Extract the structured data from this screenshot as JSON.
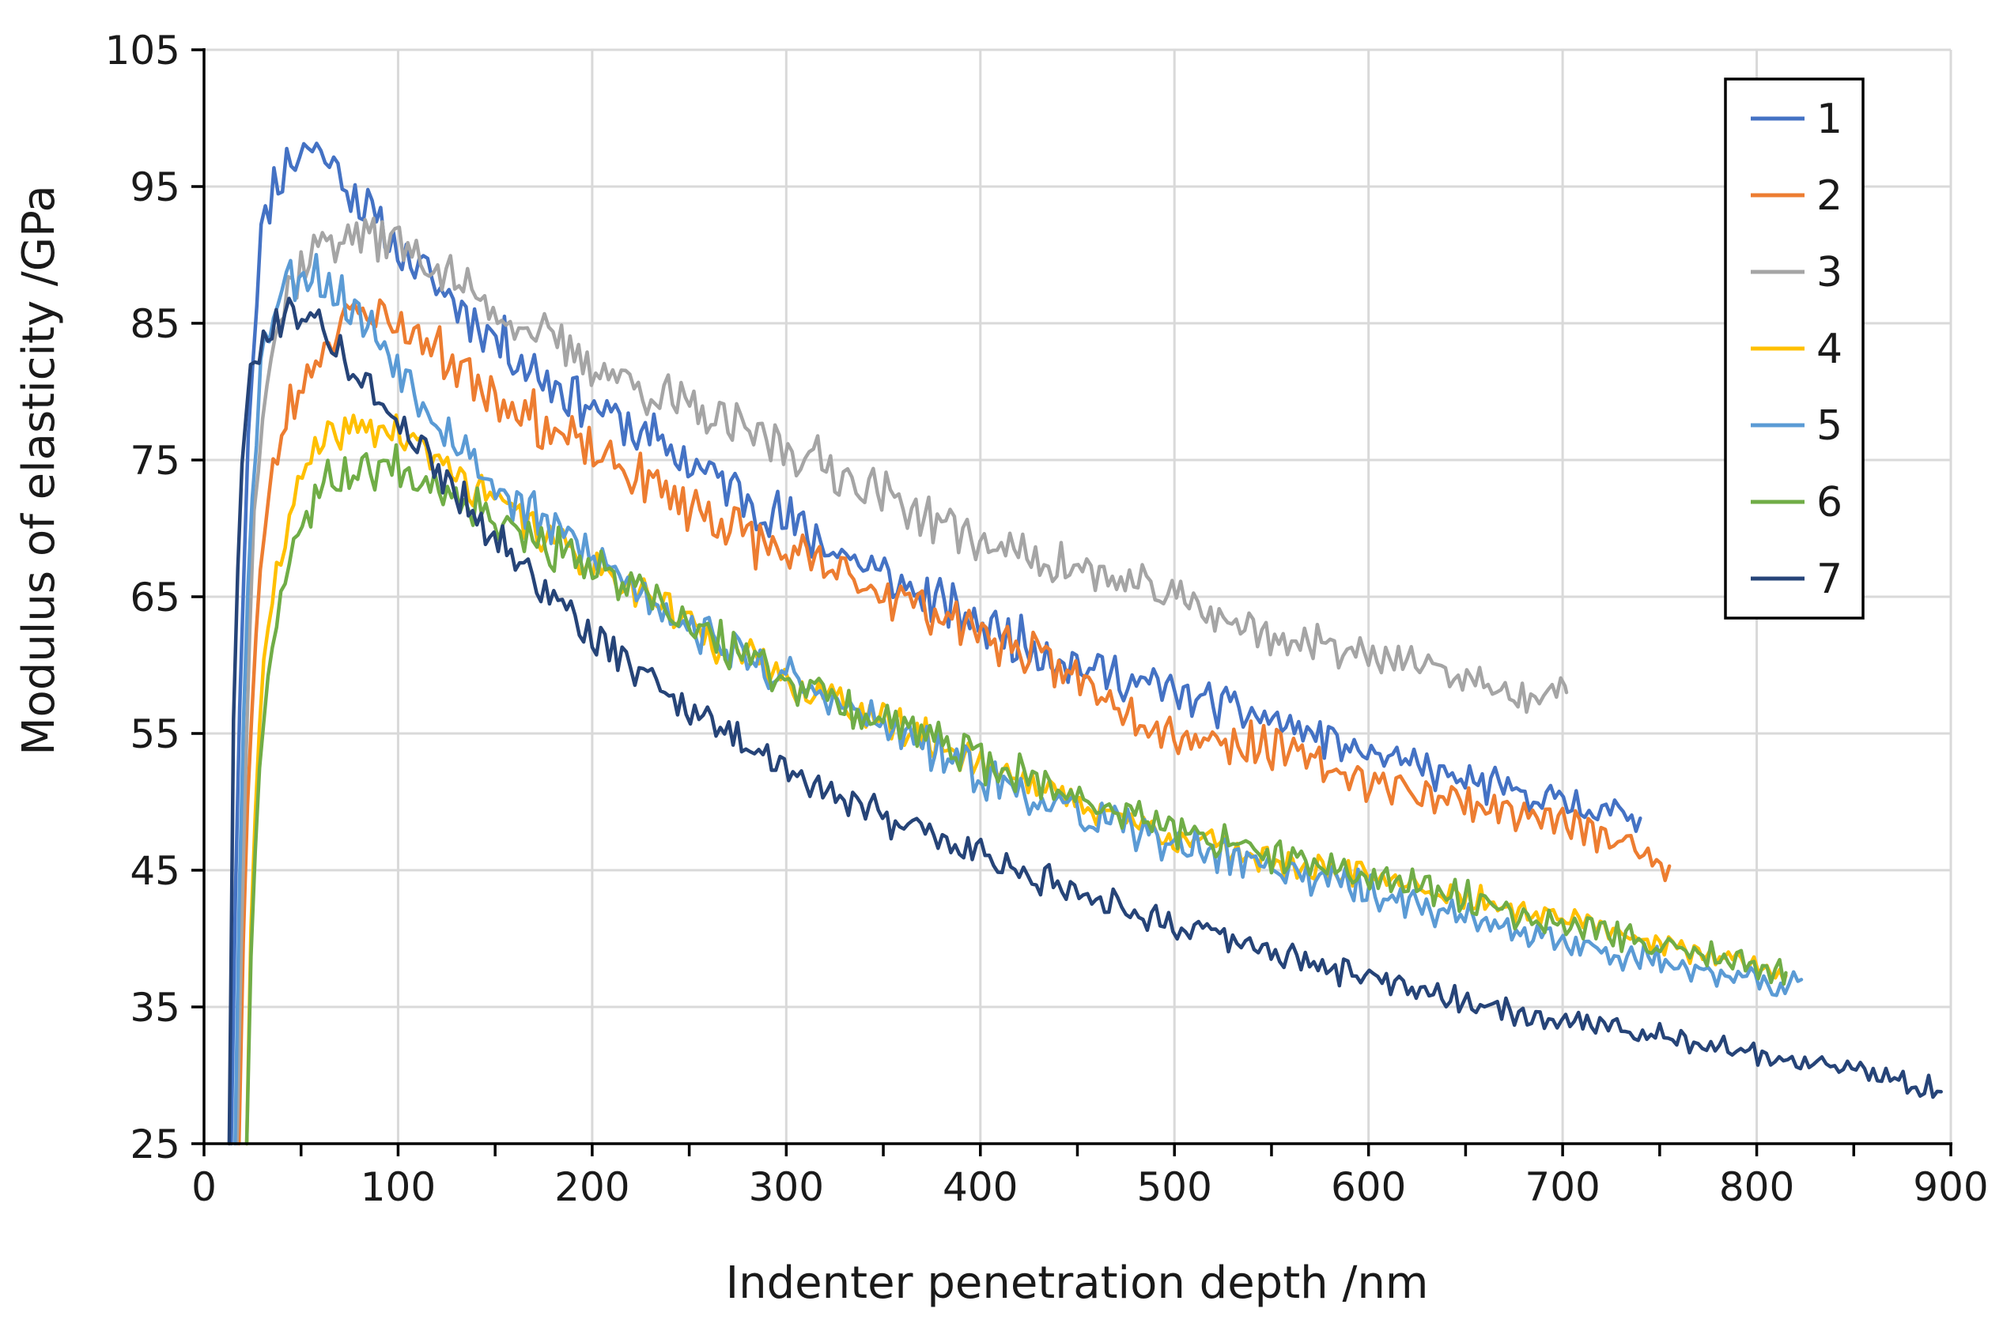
{
  "chart_data": {
    "type": "line",
    "title": "",
    "xlabel": "Indenter penetration depth /nm",
    "ylabel": "Modulus of elasticity /GPa",
    "xlim": [
      0,
      900
    ],
    "ylim": [
      25,
      105
    ],
    "xticks": [
      0,
      100,
      200,
      300,
      400,
      500,
      600,
      700,
      800,
      900
    ],
    "yticks": [
      25,
      35,
      45,
      55,
      65,
      75,
      85,
      95,
      105
    ],
    "x_minor_step": 50,
    "grid": true,
    "legend_position": "top-right",
    "series": [
      {
        "name": "1",
        "color": "#4472C4",
        "noise": 1.6,
        "seed": 11,
        "points": [
          [
            14,
            25
          ],
          [
            17,
            50
          ],
          [
            22,
            75
          ],
          [
            28,
            90
          ],
          [
            35,
            95
          ],
          [
            45,
            97
          ],
          [
            55,
            98
          ],
          [
            65,
            97
          ],
          [
            75,
            95
          ],
          [
            90,
            92
          ],
          [
            110,
            89
          ],
          [
            130,
            86.5
          ],
          [
            150,
            84
          ],
          [
            175,
            81
          ],
          [
            200,
            79
          ],
          [
            230,
            76.5
          ],
          [
            260,
            74
          ],
          [
            300,
            70.5
          ],
          [
            350,
            66.5
          ],
          [
            400,
            63
          ],
          [
            450,
            60
          ],
          [
            500,
            58
          ],
          [
            550,
            56
          ],
          [
            600,
            53.5
          ],
          [
            650,
            51.5
          ],
          [
            700,
            50
          ],
          [
            740,
            48.8
          ]
        ]
      },
      {
        "name": "2",
        "color": "#ED7D31",
        "noise": 1.6,
        "seed": 23,
        "points": [
          [
            18,
            25
          ],
          [
            21,
            45
          ],
          [
            26,
            62
          ],
          [
            33,
            72
          ],
          [
            42,
            78
          ],
          [
            55,
            82
          ],
          [
            70,
            85
          ],
          [
            85,
            86
          ],
          [
            100,
            85
          ],
          [
            120,
            83
          ],
          [
            150,
            80
          ],
          [
            180,
            77
          ],
          [
            220,
            74
          ],
          [
            260,
            71
          ],
          [
            300,
            68
          ],
          [
            350,
            65.5
          ],
          [
            400,
            62.5
          ],
          [
            450,
            59
          ],
          [
            500,
            55
          ],
          [
            550,
            54
          ],
          [
            600,
            51.5
          ],
          [
            650,
            50
          ],
          [
            700,
            48.5
          ],
          [
            740,
            46.5
          ],
          [
            755,
            45.3
          ]
        ]
      },
      {
        "name": "3",
        "color": "#A5A5A5",
        "noise": 1.5,
        "seed": 37,
        "points": [
          [
            17,
            25
          ],
          [
            20,
            45
          ],
          [
            25,
            70
          ],
          [
            32,
            82
          ],
          [
            45,
            88
          ],
          [
            60,
            91
          ],
          [
            80,
            91.5
          ],
          [
            100,
            91
          ],
          [
            125,
            88.5
          ],
          [
            150,
            86
          ],
          [
            175,
            84
          ],
          [
            200,
            82
          ],
          [
            230,
            80
          ],
          [
            260,
            78
          ],
          [
            300,
            76
          ],
          [
            350,
            72.5
          ],
          [
            400,
            69
          ],
          [
            450,
            67
          ],
          [
            500,
            65
          ],
          [
            550,
            62
          ],
          [
            600,
            61
          ],
          [
            650,
            59
          ],
          [
            680,
            57.5
          ],
          [
            702,
            58
          ]
        ]
      },
      {
        "name": "4",
        "color": "#FFC000",
        "noise": 1.2,
        "seed": 41,
        "points": [
          [
            22,
            25
          ],
          [
            24,
            40
          ],
          [
            28,
            55
          ],
          [
            35,
            65
          ],
          [
            45,
            72
          ],
          [
            60,
            76
          ],
          [
            80,
            77.5
          ],
          [
            100,
            77
          ],
          [
            120,
            75
          ],
          [
            150,
            72
          ],
          [
            180,
            69
          ],
          [
            220,
            66
          ],
          [
            260,
            62
          ],
          [
            300,
            59
          ],
          [
            350,
            56
          ],
          [
            400,
            53
          ],
          [
            450,
            50
          ],
          [
            500,
            47.5
          ],
          [
            550,
            45.8
          ],
          [
            600,
            44.5
          ],
          [
            650,
            43
          ],
          [
            700,
            41.5
          ],
          [
            750,
            39.5
          ],
          [
            790,
            38.5
          ],
          [
            815,
            37.3
          ]
        ]
      },
      {
        "name": "5",
        "color": "#5B9BD5",
        "noise": 1.4,
        "seed": 53,
        "points": [
          [
            16,
            25
          ],
          [
            19,
            50
          ],
          [
            24,
            72
          ],
          [
            30,
            83
          ],
          [
            40,
            88
          ],
          [
            55,
            89
          ],
          [
            70,
            87
          ],
          [
            90,
            84
          ],
          [
            110,
            80
          ],
          [
            130,
            76.5
          ],
          [
            150,
            73
          ],
          [
            180,
            70
          ],
          [
            220,
            66
          ],
          [
            260,
            62
          ],
          [
            300,
            59
          ],
          [
            350,
            55.5
          ],
          [
            400,
            52
          ],
          [
            450,
            49
          ],
          [
            500,
            47
          ],
          [
            550,
            45.3
          ],
          [
            600,
            43.5
          ],
          [
            650,
            41.5
          ],
          [
            700,
            39.8
          ],
          [
            750,
            38.3
          ],
          [
            800,
            37
          ],
          [
            812,
            36
          ],
          [
            823,
            37
          ]
        ]
      },
      {
        "name": "6",
        "color": "#70AD47",
        "noise": 1.4,
        "seed": 67,
        "points": [
          [
            22,
            25
          ],
          [
            24,
            38
          ],
          [
            28,
            52
          ],
          [
            35,
            62
          ],
          [
            45,
            69
          ],
          [
            60,
            73
          ],
          [
            80,
            74.5
          ],
          [
            100,
            74.5
          ],
          [
            120,
            73.5
          ],
          [
            150,
            71
          ],
          [
            180,
            68.5
          ],
          [
            220,
            65.5
          ],
          [
            260,
            62
          ],
          [
            300,
            59
          ],
          [
            350,
            56
          ],
          [
            400,
            53
          ],
          [
            450,
            50.5
          ],
          [
            500,
            48
          ],
          [
            550,
            46
          ],
          [
            600,
            44.5
          ],
          [
            650,
            43
          ],
          [
            700,
            41
          ],
          [
            750,
            39.5
          ],
          [
            790,
            38.5
          ],
          [
            815,
            37.5
          ]
        ]
      },
      {
        "name": "7",
        "color": "#264478",
        "noise": 1.2,
        "seed": 79,
        "points": [
          [
            13,
            25
          ],
          [
            15,
            55
          ],
          [
            19,
            75
          ],
          [
            25,
            82
          ],
          [
            35,
            85
          ],
          [
            50,
            86
          ],
          [
            65,
            84
          ],
          [
            80,
            81
          ],
          [
            100,
            78
          ],
          [
            120,
            74.5
          ],
          [
            140,
            71
          ],
          [
            160,
            68
          ],
          [
            180,
            65
          ],
          [
            200,
            62
          ],
          [
            230,
            59
          ],
          [
            260,
            56
          ],
          [
            300,
            52.5
          ],
          [
            350,
            49
          ],
          [
            400,
            46
          ],
          [
            450,
            43.5
          ],
          [
            500,
            41
          ],
          [
            550,
            39
          ],
          [
            600,
            37
          ],
          [
            650,
            35.5
          ],
          [
            700,
            34
          ],
          [
            750,
            33
          ],
          [
            800,
            31.5
          ],
          [
            850,
            30.5
          ],
          [
            895,
            28.8
          ]
        ]
      }
    ]
  }
}
